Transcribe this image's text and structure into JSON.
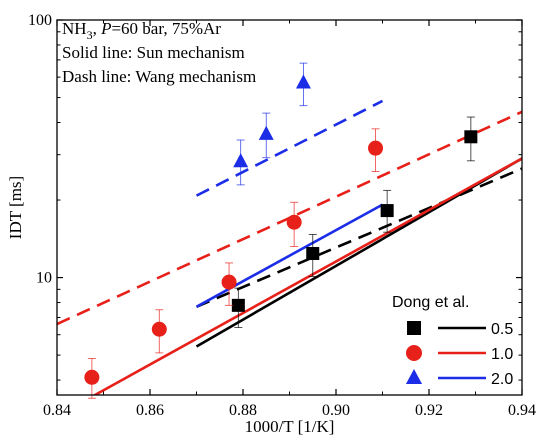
{
  "chart_data": {
    "type": "scatter",
    "xlabel": "1000/T [1/K]",
    "ylabel": "IDT [ms]",
    "xlim": [
      0.84,
      0.94
    ],
    "ylim": [
      3.5,
      100
    ],
    "y_scale": "log",
    "x_ticks": [
      "0.84",
      "0.86",
      "0.88",
      "0.90",
      "0.92",
      "0.94"
    ],
    "x_tick_values": [
      0.84,
      0.86,
      0.88,
      0.9,
      0.92,
      0.94
    ],
    "y_ticks": [
      "10",
      "100"
    ],
    "y_tick_values": [
      10,
      100
    ],
    "grid": false,
    "annotations": {
      "line1_prefix": "NH",
      "line1_sub": "3",
      "line1_mid": ", ",
      "line1_italic": "P",
      "line1_suffix": "=60 bar, 75%Ar",
      "line2": "Solid line: Sun mechanism",
      "line3": "Dash line: Wang mechanism"
    },
    "legend": {
      "title": "Dong et al.",
      "placement": "bottom-right",
      "entries": [
        {
          "label": "0.5",
          "marker": "square",
          "color": "#000000"
        },
        {
          "label": "1.0",
          "marker": "circle",
          "color": "#e8201a"
        },
        {
          "label": "2.0",
          "marker": "triangle",
          "color": "#1c2de8"
        }
      ]
    },
    "series": [
      {
        "name": "0.5",
        "color": "#000000",
        "marker": "square",
        "points": [
          {
            "x": 0.879,
            "y": 7.8,
            "err_up": 1.3,
            "err_down": 1.4
          },
          {
            "x": 0.895,
            "y": 12.4,
            "err_up": 2.3,
            "err_down": 2.3
          },
          {
            "x": 0.911,
            "y": 18.2,
            "err_up": 3.6,
            "err_down": 3.2
          },
          {
            "x": 0.929,
            "y": 35.2,
            "err_up": 6.8,
            "err_down": 6.8
          }
        ],
        "solid": [
          [
            0.87,
            5.4
          ],
          [
            0.94,
            29.0
          ]
        ],
        "dash": [
          [
            0.87,
            7.7
          ],
          [
            0.94,
            26.5
          ]
        ]
      },
      {
        "name": "1.0",
        "color": "#e8201a",
        "marker": "circle",
        "points": [
          {
            "x": 0.8475,
            "y": 4.1,
            "err_up": 0.75,
            "err_down": 0.7
          },
          {
            "x": 0.862,
            "y": 6.3,
            "err_up": 1.2,
            "err_down": 1.2
          },
          {
            "x": 0.877,
            "y": 9.6,
            "err_up": 1.8,
            "err_down": 1.8
          },
          {
            "x": 0.891,
            "y": 16.4,
            "err_up": 3.2,
            "err_down": 3.2
          },
          {
            "x": 0.9085,
            "y": 31.8,
            "err_up": 6.0,
            "err_down": 6.0
          }
        ],
        "solid": [
          [
            0.84,
            2.9
          ],
          [
            0.94,
            29.0
          ]
        ],
        "dash": [
          [
            0.84,
            6.6
          ],
          [
            0.94,
            44.0
          ]
        ]
      },
      {
        "name": "2.0",
        "color": "#1c2de8",
        "marker": "triangle",
        "points": [
          {
            "x": 0.8795,
            "y": 28.2,
            "err_up": 6.0,
            "err_down": 5.3
          },
          {
            "x": 0.885,
            "y": 36.0,
            "err_up": 7.5,
            "err_down": 6.8
          },
          {
            "x": 0.893,
            "y": 57.0,
            "err_up": 11.0,
            "err_down": 10.5
          }
        ],
        "solid": [
          [
            0.87,
            7.7
          ],
          [
            0.91,
            19.2
          ]
        ],
        "dash": [
          [
            0.87,
            20.8
          ],
          [
            0.91,
            48.5
          ]
        ]
      }
    ]
  }
}
